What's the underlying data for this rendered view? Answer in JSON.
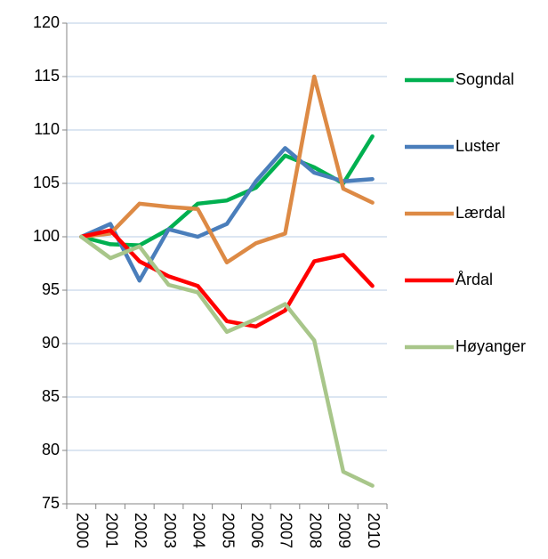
{
  "chart_data": {
    "type": "line",
    "categories": [
      "2000",
      "2001",
      "2002",
      "2003",
      "2004",
      "2005",
      "2006",
      "2007",
      "2008",
      "2009",
      "2010"
    ],
    "series": [
      {
        "name": "Sogndal",
        "color": "#00b050",
        "values": [
          100,
          99.3,
          99.2,
          100.7,
          103.1,
          103.4,
          104.6,
          107.6,
          106.5,
          105.0,
          109.4
        ]
      },
      {
        "name": "Luster",
        "color": "#4a7ebb",
        "values": [
          100,
          101.2,
          95.9,
          100.7,
          100.0,
          101.2,
          105.2,
          108.3,
          106.0,
          105.2,
          105.4
        ]
      },
      {
        "name": "Lærdal",
        "color": "#dd8a45",
        "values": [
          100,
          100.3,
          103.1,
          102.8,
          102.6,
          97.6,
          99.4,
          100.3,
          115.0,
          104.5,
          103.2
        ]
      },
      {
        "name": "Årdal",
        "color": "#ff0000",
        "values": [
          100,
          100.6,
          97.7,
          96.3,
          95.4,
          92.1,
          91.6,
          93.1,
          97.7,
          98.3,
          95.4
        ]
      },
      {
        "name": "Høyanger",
        "color": "#a8c68a",
        "values": [
          100,
          98.0,
          99.1,
          95.5,
          94.8,
          91.1,
          92.3,
          93.7,
          90.3,
          78.0,
          76.7
        ]
      }
    ],
    "ylim": [
      75,
      120
    ],
    "yticks": [
      75,
      80,
      85,
      90,
      95,
      100,
      105,
      110,
      115,
      120
    ],
    "grid": true,
    "legend": "right"
  }
}
